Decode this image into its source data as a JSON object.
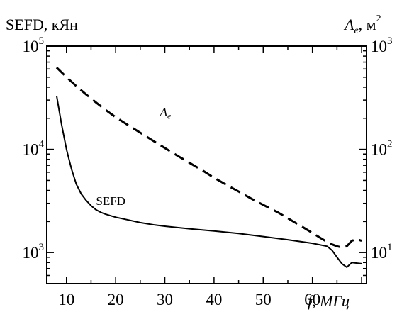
{
  "chart_data": {
    "type": "line",
    "xlabel": "f, МГц",
    "ylabel_left": "SEFD, кЯн",
    "ylabel_right_base": "A",
    "ylabel_right_sub": "e",
    "ylabel_right_unit": ", м",
    "ylabel_right_sup": "2",
    "xlim": [
      6,
      71
    ],
    "ylim_left": [
      500,
      100000
    ],
    "ylim_right": [
      5,
      1000
    ],
    "y_scale": "log",
    "grid": false,
    "x_ticks": [
      10,
      20,
      30,
      40,
      50,
      60
    ],
    "x_tick_labels": [
      "10",
      "20",
      "30",
      "40",
      "50",
      "60"
    ],
    "y_left_ticks": [
      {
        "value": 1000,
        "base": "10",
        "exp": "3"
      },
      {
        "value": 10000,
        "base": "10",
        "exp": "4"
      },
      {
        "value": 100000,
        "base": "10",
        "exp": "5"
      }
    ],
    "y_right_ticks": [
      {
        "value": 10,
        "base": "10",
        "exp": "1"
      },
      {
        "value": 100,
        "base": "10",
        "exp": "2"
      },
      {
        "value": 1000,
        "base": "10",
        "exp": "3"
      }
    ],
    "series": [
      {
        "name": "SEFD",
        "axis": "left",
        "style": "solid",
        "label_x": 16,
        "label_y": 2900,
        "x": [
          8,
          9,
          10,
          11,
          12,
          13,
          14,
          15,
          16,
          17,
          18,
          20,
          22,
          25,
          28,
          30,
          35,
          40,
          45,
          50,
          55,
          60,
          63,
          64,
          65,
          66,
          67,
          68,
          70
        ],
        "values": [
          33000,
          17500,
          10000,
          6500,
          4600,
          3700,
          3200,
          2850,
          2600,
          2450,
          2350,
          2200,
          2100,
          1950,
          1850,
          1800,
          1700,
          1620,
          1530,
          1430,
          1330,
          1230,
          1150,
          1050,
          900,
          780,
          720,
          800,
          780
        ]
      },
      {
        "name": "A",
        "name_sub": "e",
        "axis": "right",
        "style": "dashed",
        "label_x": 29,
        "label_y": 210,
        "x": [
          8,
          10,
          12,
          14,
          16,
          18,
          20,
          22,
          25,
          28,
          30,
          32,
          35,
          38,
          40,
          43,
          45,
          48,
          50,
          53,
          55,
          58,
          60,
          62,
          63,
          64,
          65,
          66,
          67,
          68,
          69,
          70
        ],
        "values": [
          620,
          500,
          410,
          340,
          285,
          240,
          205,
          178,
          145,
          118,
          103,
          90,
          74,
          61,
          53,
          44,
          39,
          32.5,
          29,
          24.5,
          21.5,
          17.7,
          15.5,
          13.5,
          12.7,
          12,
          11.5,
          11.2,
          11.5,
          13,
          13.5,
          13
        ]
      }
    ]
  }
}
